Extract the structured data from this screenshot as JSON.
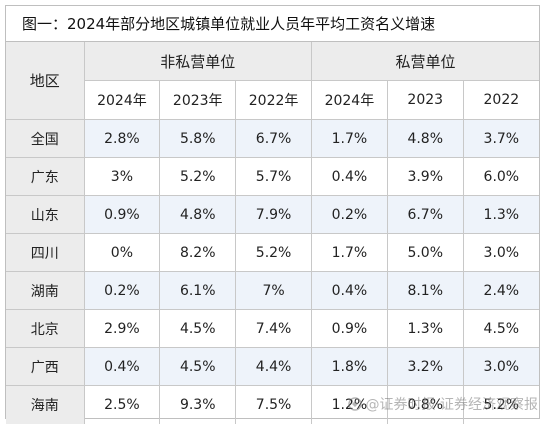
{
  "title": "图一：2024年部分地区城镇单位就业人员年平均工资名义增速",
  "header": {
    "region": "地区",
    "group_nonprivate": "非私营单位",
    "group_private": "私营单位",
    "years_nonprivate": [
      "2024年",
      "2023年",
      "2022年"
    ],
    "years_private": [
      "2024年",
      "2023",
      "2022"
    ]
  },
  "rows": [
    {
      "region": "全国",
      "values": [
        "2.8%",
        "5.8%",
        "6.7%",
        "1.7%",
        "4.8%",
        "3.7%"
      ]
    },
    {
      "region": "广东",
      "values": [
        "3%",
        "5.2%",
        "5.7%",
        "0.4%",
        "3.9%",
        "6.0%"
      ]
    },
    {
      "region": "山东",
      "values": [
        "0.9%",
        "4.8%",
        "7.9%",
        "0.2%",
        "6.7%",
        "1.3%"
      ]
    },
    {
      "region": "四川",
      "values": [
        "0%",
        "8.2%",
        "5.2%",
        "1.7%",
        "5.0%",
        "3.0%"
      ]
    },
    {
      "region": "湖南",
      "values": [
        "0.2%",
        "6.1%",
        "7%",
        "0.4%",
        "8.1%",
        "2.4%"
      ]
    },
    {
      "region": "北京",
      "values": [
        "2.9%",
        "4.5%",
        "7.4%",
        "0.9%",
        "1.3%",
        "4.5%"
      ]
    },
    {
      "region": "广西",
      "values": [
        "0.4%",
        "4.5%",
        "4.4%",
        "1.8%",
        "3.2%",
        "3.0%"
      ]
    },
    {
      "region": "海南",
      "values": [
        "2.5%",
        "9.3%",
        "7.5%",
        "1.2%",
        "0.8%",
        "5.2%"
      ]
    }
  ],
  "watermark": "@证券时报·证券经济观察报"
}
